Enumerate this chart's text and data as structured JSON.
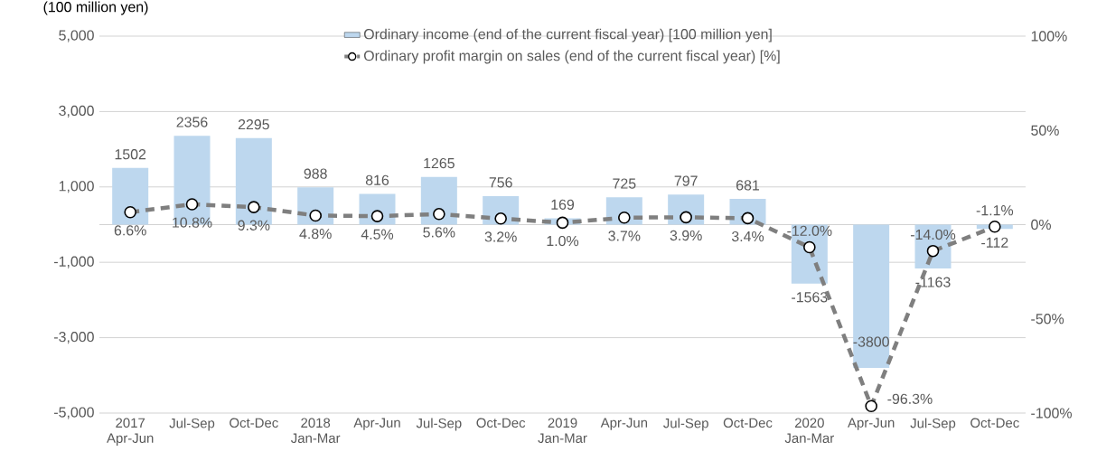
{
  "chart_data": {
    "type": "bar",
    "ylabel": "(100 million yen)",
    "categories": [
      "2017 Apr-Jun",
      "Jul-Sep",
      "Oct-Dec",
      "2018 Jan-Mar",
      "Apr-Jun",
      "Jul-Sep",
      "Oct-Dec",
      "2019 Jan-Mar",
      "Apr-Jun",
      "Jul-Sep",
      "Oct-Dec",
      "2020 Jan-Mar",
      "Apr-Jun",
      "Jul-Sep",
      "Oct-Dec"
    ],
    "series": [
      {
        "name": "Ordinary income (end of the current fiscal year) [100 million yen]",
        "color": "#bdd7ee",
        "values": [
          1502,
          2356,
          2295,
          988,
          816,
          1265,
          756,
          169,
          725,
          797,
          681,
          -1563,
          -3800,
          -1163,
          -112
        ],
        "value_labels": [
          "1502",
          "2356",
          "2295",
          "988",
          "816",
          "1265",
          "756",
          "169",
          "725",
          "797",
          "681",
          "-1563",
          "-3800",
          "-1163",
          "-112"
        ]
      },
      {
        "name": "Ordinary profit margin on sales (end of the current fiscal year) [%]",
        "type": "line",
        "axis": "y2",
        "color": "#7f7f7f",
        "marker": "circle",
        "line_style": "dashed",
        "values": [
          6.6,
          10.8,
          9.3,
          4.8,
          4.5,
          5.6,
          3.2,
          1.0,
          3.7,
          3.9,
          3.4,
          -12.0,
          -96.3,
          -14.0,
          -1.1
        ],
        "value_labels": [
          "6.6%",
          "10.8%",
          "9.3%",
          "4.8%",
          "4.5%",
          "5.6%",
          "3.2%",
          "1.0%",
          "3.7%",
          "3.9%",
          "3.4%",
          "-12.0%",
          "-96.3%",
          "-14.0%",
          "-1.1%"
        ]
      }
    ],
    "ylim": [
      -5000,
      5000
    ],
    "yticks": [
      {
        "value": -5000,
        "label": "-5,000"
      },
      {
        "value": -3000,
        "label": "-3,000"
      },
      {
        "value": -1000,
        "label": "-1,000"
      },
      {
        "value": 1000,
        "label": "1,000"
      },
      {
        "value": 3000,
        "label": "3,000"
      },
      {
        "value": 5000,
        "label": "5,000"
      }
    ],
    "y2lim": [
      -100,
      100
    ],
    "y2ticks": [
      {
        "value": -100,
        "label": "-100%"
      },
      {
        "value": -50,
        "label": "-50%"
      },
      {
        "value": 0,
        "label": "0%"
      },
      {
        "value": 50,
        "label": "50%"
      },
      {
        "value": 100,
        "label": "100%"
      }
    ],
    "grid": "y",
    "legend": "top"
  }
}
